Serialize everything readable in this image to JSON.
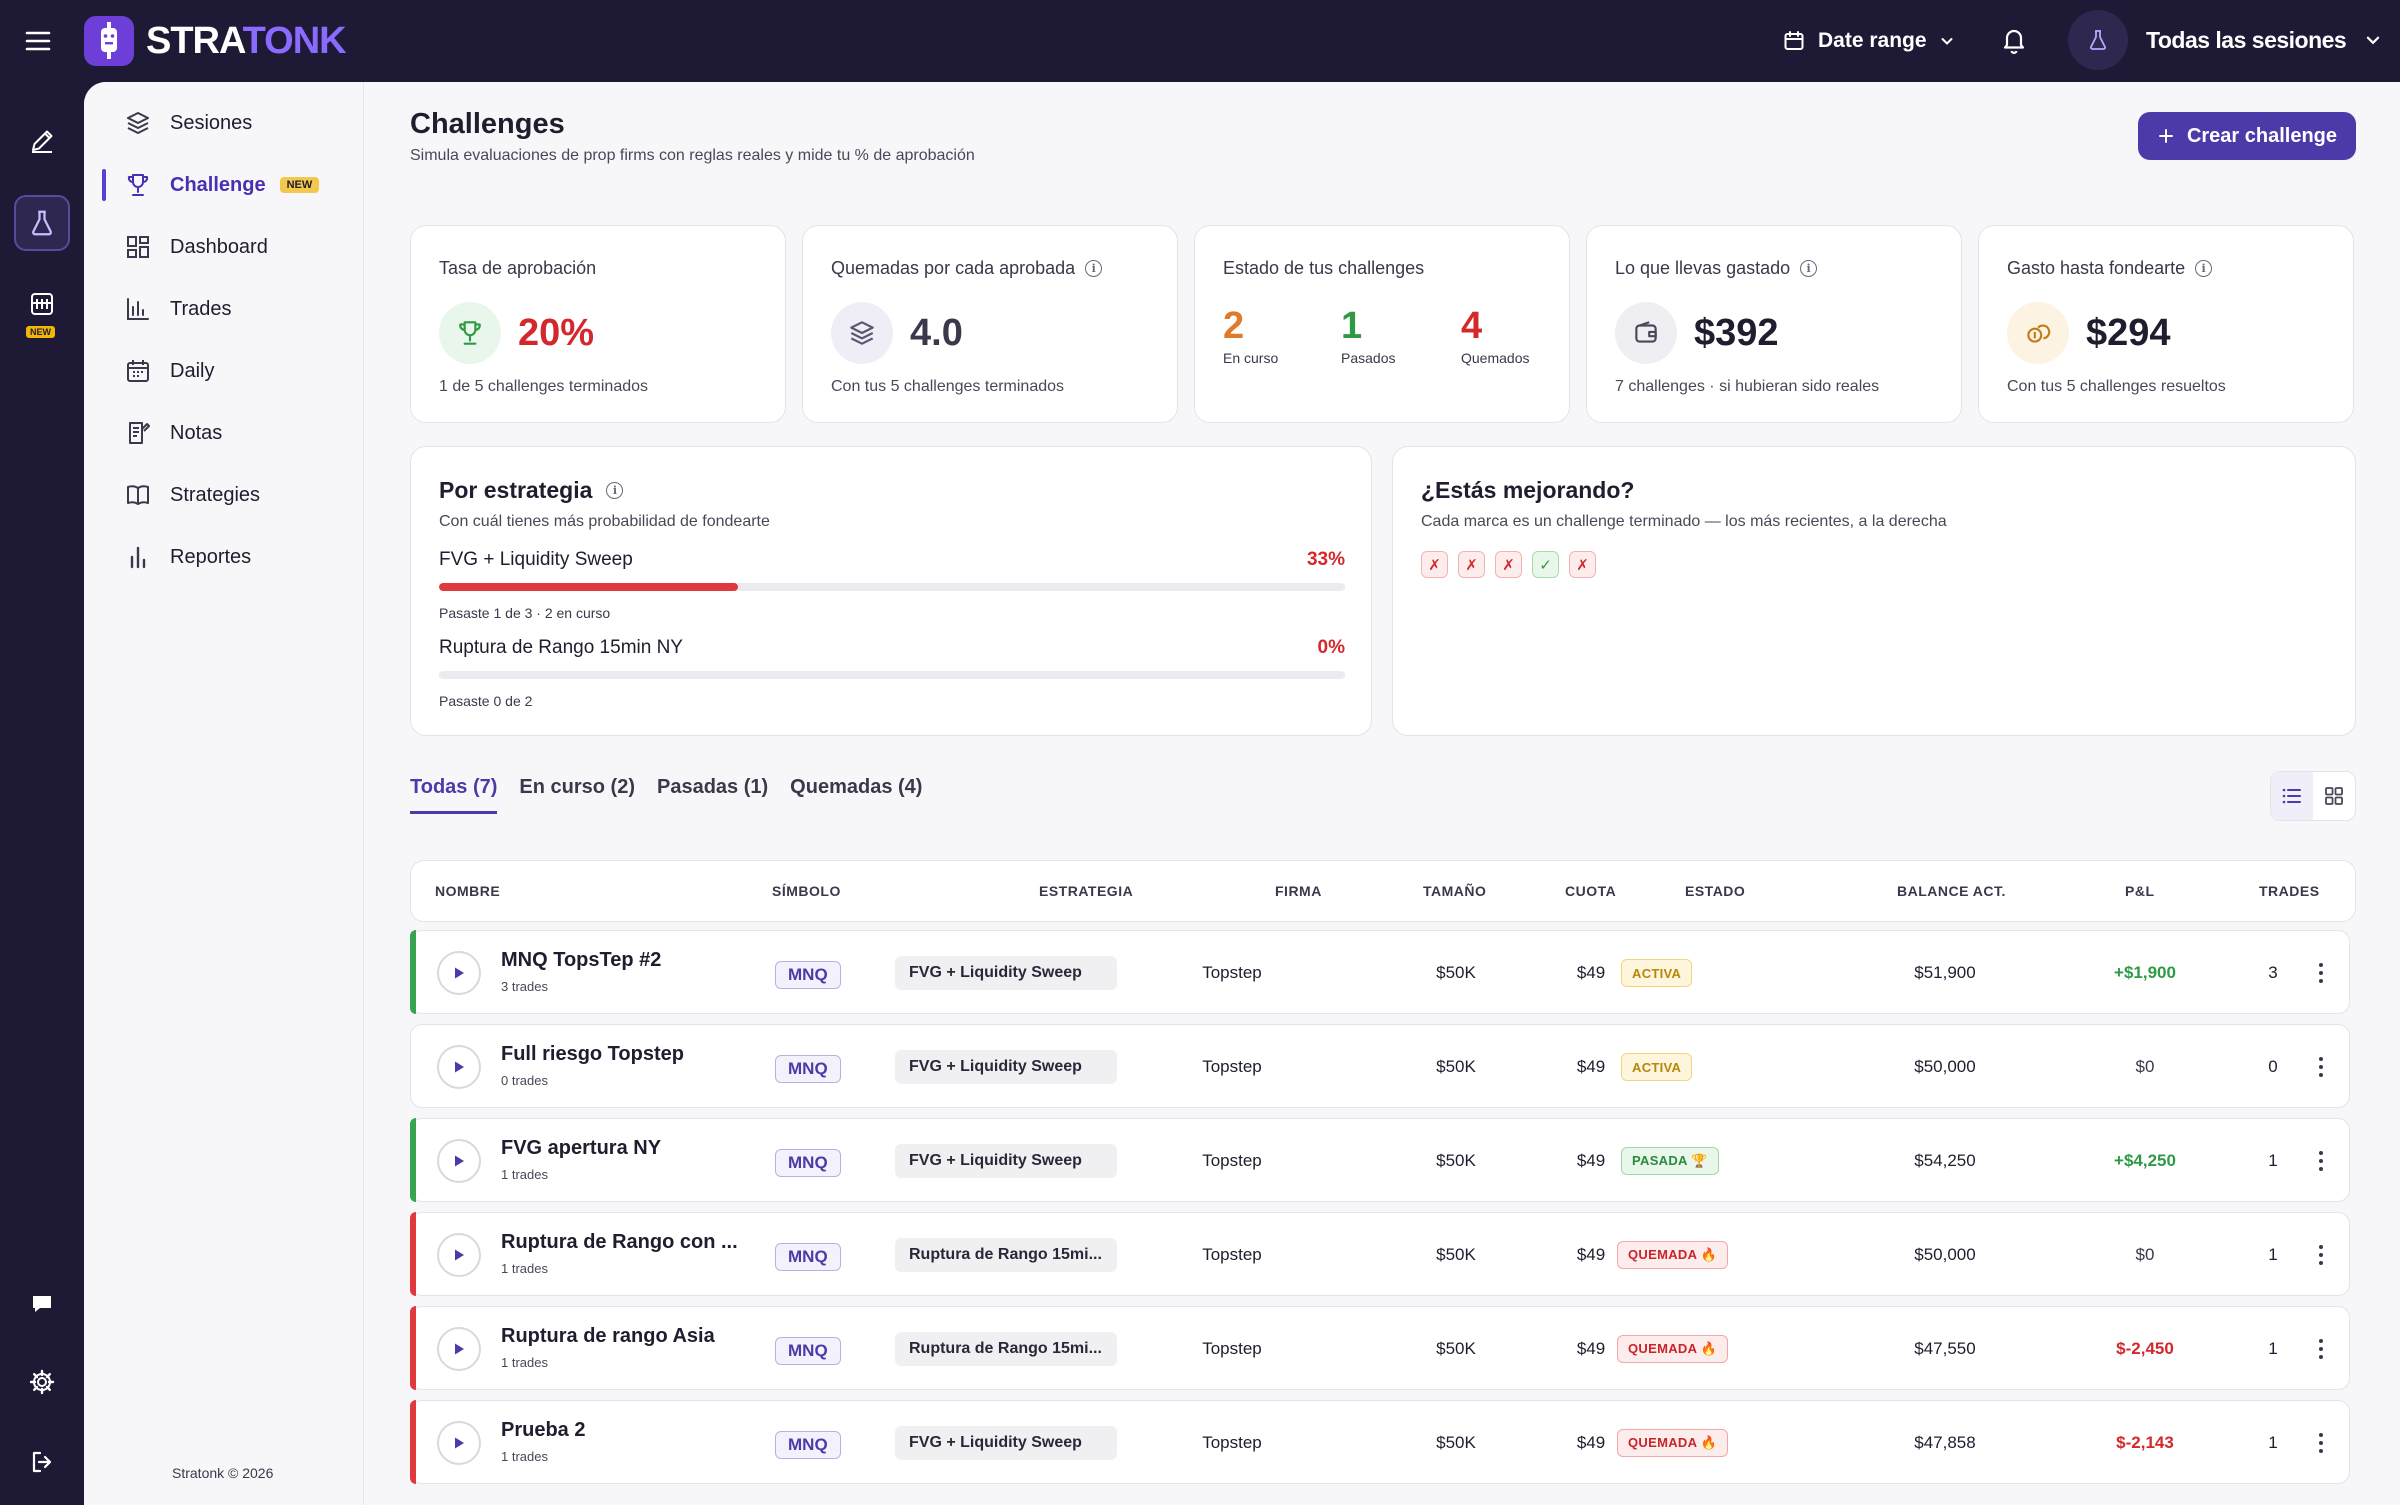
{
  "app": {
    "logo_part1": "STRA",
    "logo_part2": "TONK"
  },
  "header": {
    "date_range": "Date range",
    "user_label": "Todas las sesiones"
  },
  "rail": {
    "new_tag": "NEW"
  },
  "sidebar": {
    "items": [
      {
        "label": "Sesiones",
        "icon": "layers-icon"
      },
      {
        "label": "Challenge",
        "icon": "trophy-icon",
        "badge": "NEW",
        "active": true
      },
      {
        "label": "Dashboard",
        "icon": "dashboard-icon"
      },
      {
        "label": "Trades",
        "icon": "chart-icon"
      },
      {
        "label": "Daily",
        "icon": "calendar-icon"
      },
      {
        "label": "Notas",
        "icon": "notes-icon"
      },
      {
        "label": "Strategies",
        "icon": "book-icon"
      },
      {
        "label": "Reportes",
        "icon": "bar-chart-icon"
      }
    ],
    "copyright": "Stratonk © 2026"
  },
  "page": {
    "title": "Challenges",
    "subtitle": "Simula evaluaciones de prop firms con reglas reales y mide tu % de aprobación",
    "create_button": "Crear challenge"
  },
  "kpis": {
    "approval": {
      "title": "Tasa de aprobación",
      "value": "20%",
      "foot": "1 de 5 challenges terminados"
    },
    "burned": {
      "title": "Quemadas por cada aprobada",
      "value": "4.0",
      "foot": "Con tus 5 challenges terminados"
    },
    "status": {
      "title": "Estado de tus challenges",
      "in_progress": "2",
      "in_progress_label": "En curso",
      "passed": "1",
      "passed_label": "Pasados",
      "burned": "4",
      "burned_label": "Quemados"
    },
    "spent": {
      "title": "Lo que llevas gastado",
      "value": "$392",
      "foot": "7 challenges · si hubieran sido reales"
    },
    "to_funded": {
      "title": "Gasto hasta fondearte",
      "value": "$294",
      "foot": "Con tus 5 challenges resueltos"
    }
  },
  "strategy": {
    "title": "Por estrategia",
    "subtitle": "Con cuál tienes más probabilidad de fondearte",
    "rows": [
      {
        "name": "FVG + Liquidity Sweep",
        "pct": "33%",
        "fill": 0.33,
        "note": "Pasaste 1 de 3 · 2 en curso"
      },
      {
        "name": "Ruptura de Rango 15min NY",
        "pct": "0%",
        "fill": 0.0,
        "note": "Pasaste 0 de 2"
      }
    ]
  },
  "improving": {
    "title": "¿Estás mejorando?",
    "subtitle": "Cada marca es un challenge terminado — los más recientes, a la derecha",
    "marks": [
      "✗",
      "✗",
      "✗",
      "✓",
      "✗"
    ]
  },
  "tabs": [
    "Todas (7)",
    "En curso (2)",
    "Pasadas (1)",
    "Quemadas (4)"
  ],
  "table": {
    "headers": {
      "name": "NOMBRE",
      "symbol": "SÍMBOLO",
      "strategy": "ESTRATEGIA",
      "firm": "FIRMA",
      "size": "TAMAÑO",
      "fee": "CUOTA",
      "status": "ESTADO",
      "balance": "BALANCE ACT.",
      "pnl": "P&L",
      "trades": "TRADES"
    },
    "rows": [
      {
        "name": "MNQ TopsTep #2",
        "sub": "3 trades",
        "symbol": "MNQ",
        "strategy": "FVG + Liquidity Sweep",
        "firm": "Topstep",
        "size": "$50K",
        "fee": "$49",
        "status": "ACTIVA",
        "balance": "$51,900",
        "pnl": "+$1,900",
        "trades": "3"
      },
      {
        "name": "Full riesgo Topstep",
        "sub": "0 trades",
        "symbol": "MNQ",
        "strategy": "FVG + Liquidity Sweep",
        "firm": "Topstep",
        "size": "$50K",
        "fee": "$49",
        "status": "ACTIVA",
        "balance": "$50,000",
        "pnl": "$0",
        "trades": "0"
      },
      {
        "name": "FVG apertura NY",
        "sub": "1 trades",
        "symbol": "MNQ",
        "strategy": "FVG + Liquidity Sweep",
        "firm": "Topstep",
        "size": "$50K",
        "fee": "$49",
        "status": "PASADA 🏆",
        "balance": "$54,250",
        "pnl": "+$4,250",
        "trades": "1"
      },
      {
        "name": "Ruptura de Rango con ...",
        "sub": "1 trades",
        "symbol": "MNQ",
        "strategy": "Ruptura de Rango 15mi...",
        "firm": "Topstep",
        "size": "$50K",
        "fee": "$49",
        "status": "QUEMADA 🔥",
        "balance": "$50,000",
        "pnl": "$0",
        "trades": "1"
      },
      {
        "name": "Ruptura de rango Asia",
        "sub": "1 trades",
        "symbol": "MNQ",
        "strategy": "Ruptura de Rango 15mi...",
        "firm": "Topstep",
        "size": "$50K",
        "fee": "$49",
        "status": "QUEMADA 🔥",
        "balance": "$47,550",
        "pnl": "$-2,450",
        "trades": "1"
      },
      {
        "name": "Prueba 2",
        "sub": "1 trades",
        "symbol": "MNQ",
        "strategy": "FVG + Liquidity Sweep",
        "firm": "Topstep",
        "size": "$50K",
        "fee": "$49",
        "status": "QUEMADA 🔥",
        "balance": "$47,858",
        "pnl": "$-2,143",
        "trades": "1"
      }
    ]
  },
  "colors": {
    "brand": "#4b3aa8",
    "active": "#f2b705",
    "pass": "#2f9a44",
    "fail": "#d3282c",
    "in_progress": "#e07b2a"
  }
}
